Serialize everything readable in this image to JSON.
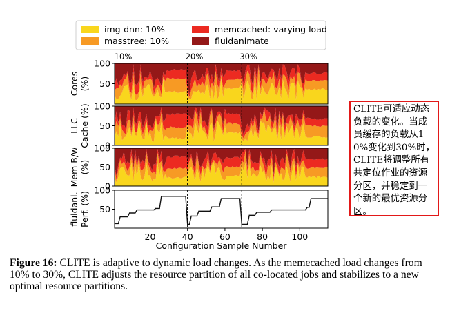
{
  "chart_data": {
    "type": "area",
    "x_range": [
      1,
      115
    ],
    "xlabel": "Configuration Sample Number",
    "xticks": [
      20,
      40,
      60,
      80,
      100
    ],
    "load_markers": [
      {
        "x": 2,
        "label": "10%"
      },
      {
        "x": 40,
        "label": "20%"
      },
      {
        "x": 69,
        "label": "30%"
      }
    ],
    "legend": [
      {
        "label": "img-dnn: 10%",
        "color": "#f9d61d"
      },
      {
        "label": "memcached: varying load",
        "color": "#ec2a21"
      },
      {
        "label": "masstree: 10%",
        "color": "#f79a24"
      },
      {
        "label": "fluidanimate",
        "color": "#941818"
      }
    ],
    "panels": [
      {
        "ylabel_lines": [
          "Cores",
          "(%)"
        ],
        "yticks": [
          50,
          100
        ],
        "ylim": [
          0,
          100
        ],
        "kind": "stack",
        "seed": 11,
        "stable": [
          [
            0,
            30,
            62,
            84
          ],
          [
            0,
            40,
            62,
            82
          ],
          [
            0,
            36,
            58,
            76
          ]
        ]
      },
      {
        "ylabel_lines": [
          "LLC",
          "Cache (%)"
        ],
        "yticks": [
          0,
          50,
          100
        ],
        "ylim": [
          0,
          100
        ],
        "kind": "stack",
        "seed": 23,
        "stable": [
          [
            0,
            18,
            46,
            80
          ],
          [
            0,
            32,
            56,
            80
          ],
          [
            0,
            22,
            50,
            68
          ]
        ]
      },
      {
        "ylabel_lines": [
          "Mem B/w",
          "(%)"
        ],
        "yticks": [
          0,
          50,
          100
        ],
        "ylim": [
          0,
          100
        ],
        "kind": "stack",
        "seed": 37,
        "stable": [
          [
            0,
            22,
            46,
            78
          ],
          [
            0,
            28,
            50,
            76
          ],
          [
            0,
            24,
            48,
            72
          ]
        ]
      },
      {
        "ylabel_lines": [
          "fluidani.",
          "Perf. (%)"
        ],
        "yticks": [
          50,
          100
        ],
        "ylim": [
          0,
          100
        ],
        "kind": "line",
        "perf": [
          [
            1,
            12
          ],
          [
            3,
            12
          ],
          [
            4,
            30
          ],
          [
            8,
            30
          ],
          [
            9,
            40
          ],
          [
            12,
            40
          ],
          [
            13,
            48
          ],
          [
            22,
            48
          ],
          [
            23,
            52
          ],
          [
            25,
            52
          ],
          [
            26,
            84
          ],
          [
            39,
            84
          ],
          [
            40,
            10
          ],
          [
            41,
            10
          ],
          [
            42,
            32
          ],
          [
            45,
            32
          ],
          [
            46,
            45
          ],
          [
            52,
            45
          ],
          [
            53,
            56
          ],
          [
            57,
            56
          ],
          [
            58,
            78
          ],
          [
            68,
            78
          ],
          [
            69,
            10
          ],
          [
            72,
            10
          ],
          [
            73,
            34
          ],
          [
            76,
            34
          ],
          [
            77,
            42
          ],
          [
            84,
            42
          ],
          [
            85,
            48
          ],
          [
            103,
            48
          ],
          [
            104,
            55
          ],
          [
            105,
            55
          ],
          [
            106,
            78
          ],
          [
            115,
            78
          ]
        ]
      }
    ]
  },
  "caption": {
    "label": "Figure 16:",
    "text": " CLITE is adaptive to dynamic load changes. As the memecached load changes from 10% to 30%, CLITE adjusts the resource partition of all co-located jobs and stabilizes to a new optimal resource partitions."
  },
  "note": {
    "text": "CLITE可适应动态负载的变化。当成员缓存的负载从10%变化到30%时，CLITE将调整所有共定位作业的资源分区，并稳定到一个新的最优资源分区。"
  }
}
